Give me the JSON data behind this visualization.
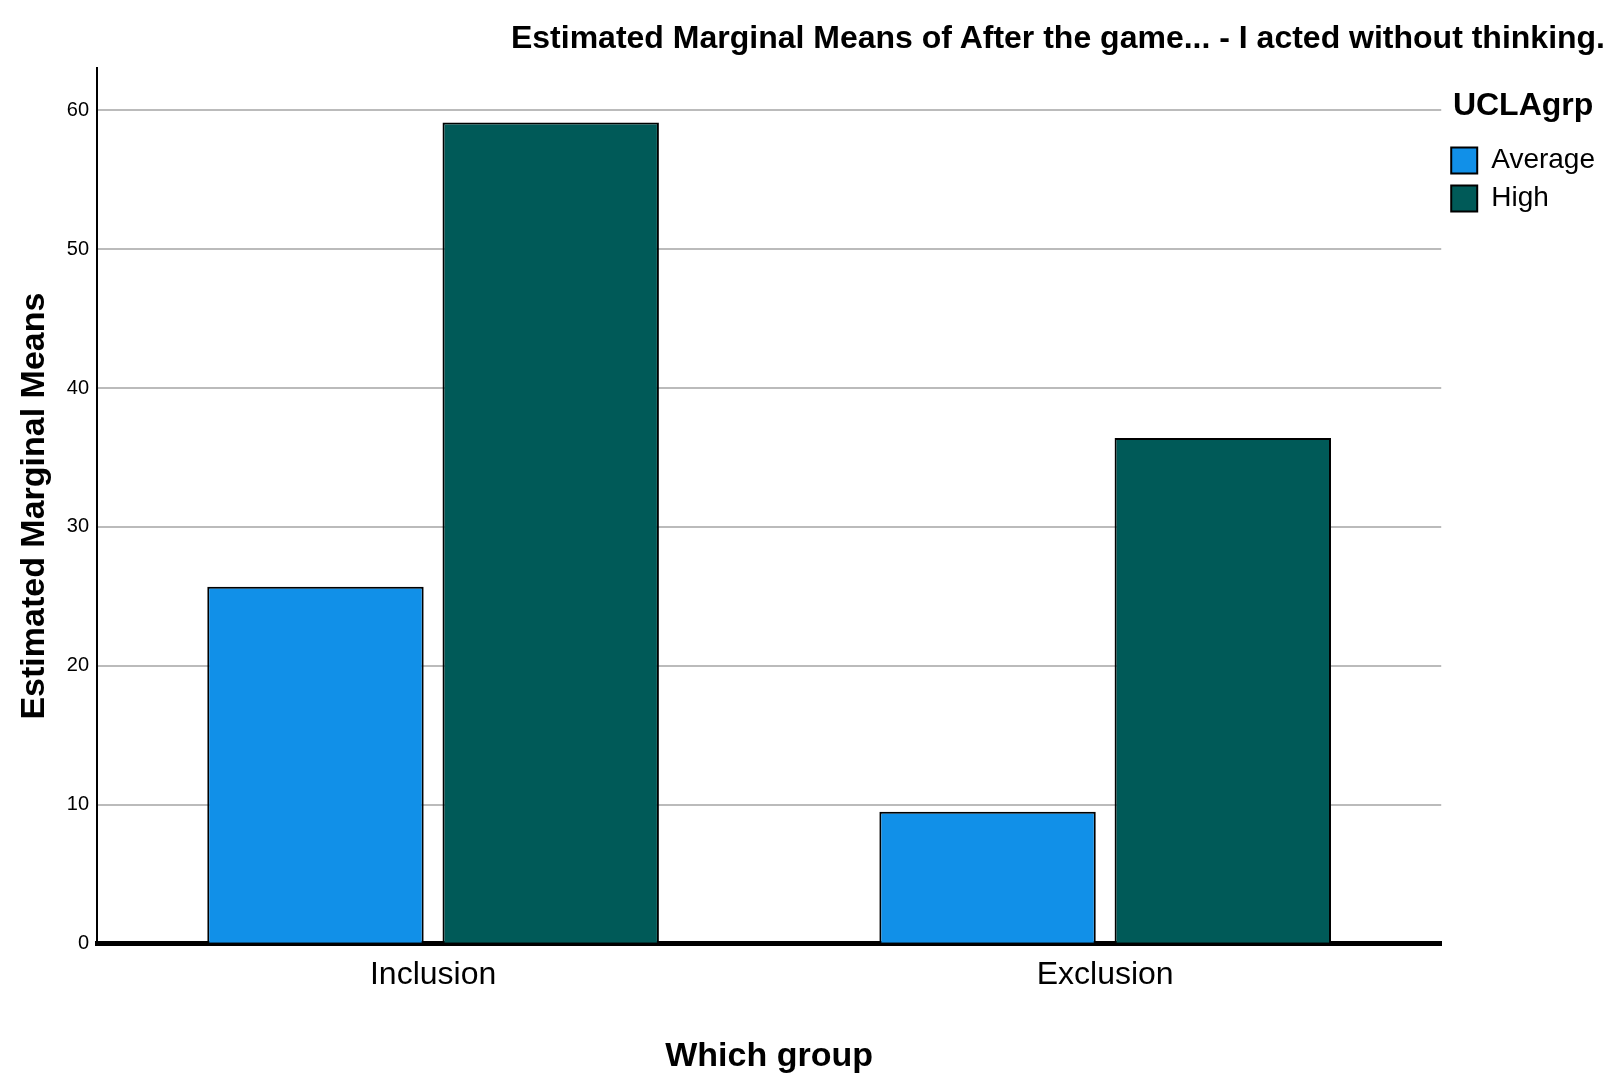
{
  "chart_data": {
    "type": "bar",
    "title": "Estimated Marginal Means of After the game... - I acted without thinking.",
    "xlabel": "Which group",
    "ylabel": "Estimated Marginal Means",
    "legend_title": "UCLAgrp",
    "categories": [
      "Inclusion",
      "Exclusion"
    ],
    "series": [
      {
        "name": "Average",
        "color": "#1190e8",
        "values": [
          25.7,
          9.5
        ]
      },
      {
        "name": "High",
        "color": "#005a58",
        "values": [
          59.1,
          36.4
        ]
      }
    ],
    "ylim": [
      0,
      63
    ],
    "yticks": [
      0,
      10,
      20,
      30,
      40,
      50,
      60
    ],
    "grid": "y",
    "legend": "top right"
  }
}
